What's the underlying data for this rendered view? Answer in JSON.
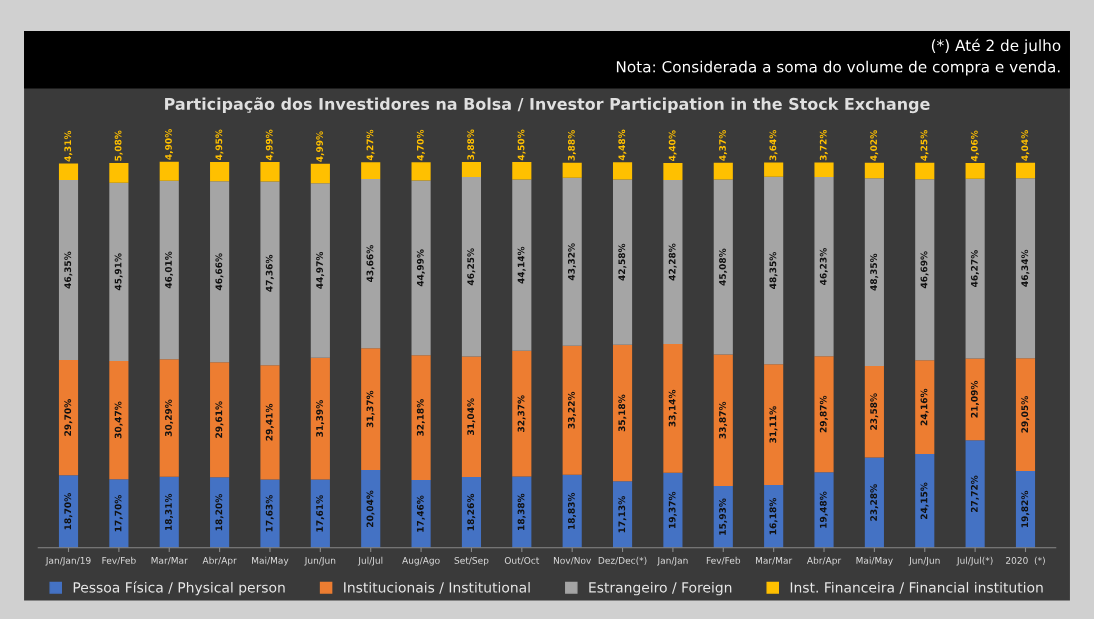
{
  "chart_data": {
    "type": "bar",
    "stacked": true,
    "title": "Participação dos Investidores na Bolsa / Investor Participation in the Stock Exchange",
    "annotations": [
      "(*) Até 2 de julho",
      "Nota: Considerada a soma do volume de compra e venda."
    ],
    "categories": [
      "Jan/Jan/19",
      "Fev/Feb",
      "Mar/Mar",
      "Abr/Apr",
      "Mai/May",
      "Jun/Jun",
      "Jul/Jul",
      "Aug/Ago",
      "Set/Sep",
      "Out/Oct",
      "Nov/Nov",
      "Dez/Dec(*)",
      "Jan/Jan",
      "Fev/Feb",
      "Mar/Mar",
      "Abr/Apr",
      "Mai/May",
      "Jun/Jun",
      "Jul/Jul(*)",
      "2020  (*)"
    ],
    "legend": "bottom",
    "series": [
      {
        "name": "Pessoa Física / Physical person",
        "color": "#4472c4",
        "values": [
          18.7,
          17.7,
          18.31,
          18.2,
          17.63,
          17.61,
          20.04,
          17.46,
          18.26,
          18.38,
          18.83,
          17.13,
          19.37,
          15.93,
          16.18,
          19.48,
          23.28,
          24.15,
          27.72,
          19.82
        ],
        "value_labels": [
          "18,70%",
          "17,70%",
          "18,31%",
          "18,20%",
          "17,63%",
          "17,61%",
          "20,04%",
          "17,46%",
          "18,26%",
          "18,38%",
          "18,83%",
          "17,13%",
          "19,37%",
          "15,93%",
          "16,18%",
          "19,48%",
          "23,28%",
          "24,15%",
          "27,72%",
          "19,82%"
        ]
      },
      {
        "name": "Institucionais / Institutional",
        "color": "#ed7d31",
        "values": [
          29.7,
          30.47,
          30.29,
          29.61,
          29.41,
          31.39,
          31.37,
          32.18,
          31.04,
          32.37,
          33.22,
          35.18,
          33.14,
          33.87,
          31.11,
          29.87,
          23.58,
          24.16,
          21.09,
          29.05
        ],
        "value_labels": [
          "29,70%",
          "30,47%",
          "30,29%",
          "29,61%",
          "29,41%",
          "31,39%",
          "31,37%",
          "32,18%",
          "31,04%",
          "32,37%",
          "33,22%",
          "35,18%",
          "33,14%",
          "33,87%",
          "31,11%",
          "29,87%",
          "23,58%",
          "24,16%",
          "21,09%",
          "29,05%"
        ]
      },
      {
        "name": "Estrangeiro / Foreign",
        "color": "#a5a5a5",
        "values": [
          46.35,
          45.91,
          46.01,
          46.66,
          47.36,
          44.97,
          43.66,
          44.99,
          46.25,
          44.14,
          43.32,
          42.58,
          42.28,
          45.08,
          48.35,
          46.23,
          48.35,
          46.69,
          46.27,
          46.34
        ],
        "value_labels": [
          "46,35%",
          "45,91%",
          "46,01%",
          "46,66%",
          "47,36%",
          "44,97%",
          "43,66%",
          "44,99%",
          "46,25%",
          "44,14%",
          "43,32%",
          "42,58%",
          "42,28%",
          "45,08%",
          "48,35%",
          "46,23%",
          "48,35%",
          "46,69%",
          "46,27%",
          "46,34%"
        ]
      },
      {
        "name": "Inst. Financeira / Financial institution",
        "color": "#ffc000",
        "values": [
          4.31,
          5.08,
          4.9,
          4.95,
          4.99,
          4.99,
          4.27,
          4.7,
          3.88,
          4.5,
          3.88,
          4.48,
          4.4,
          4.37,
          3.64,
          3.72,
          4.02,
          4.25,
          4.06,
          4.04
        ],
        "value_labels": [
          "4,31%",
          "5,08%",
          "4,90%",
          "4,95%",
          "4,99%",
          "4,99%",
          "4,27%",
          "4,70%",
          "3,88%",
          "4,50%",
          "3,88%",
          "4,48%",
          "4,40%",
          "4,37%",
          "3,64%",
          "3,72%",
          "4,02%",
          "4,25%",
          "4,06%",
          "4,04%"
        ]
      }
    ]
  }
}
